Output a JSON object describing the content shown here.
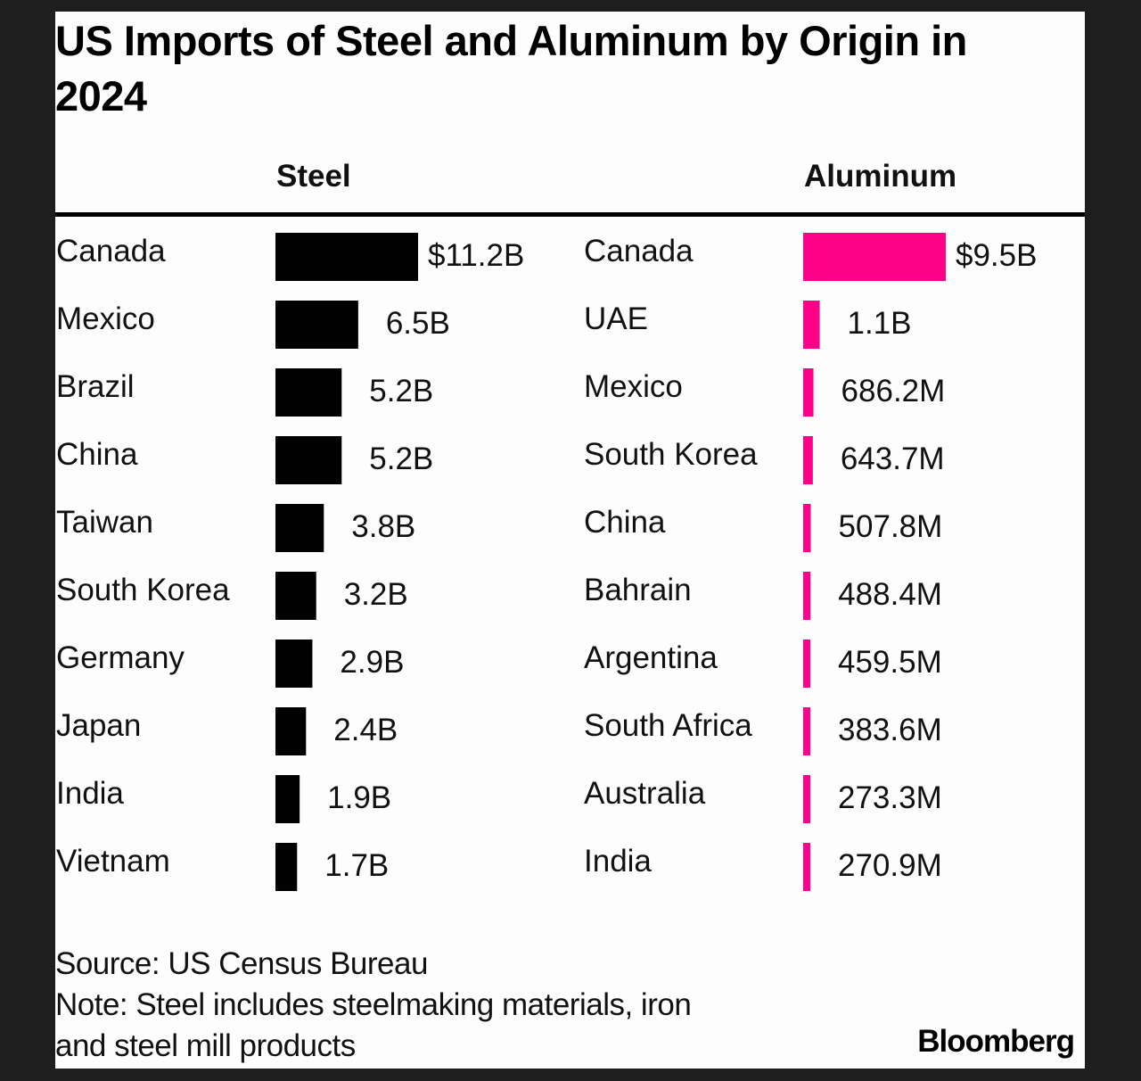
{
  "chart_data": [
    {
      "type": "bar",
      "orientation": "horizontal",
      "title": "US Imports of Steel and Aluminum by Origin in 2024",
      "panel": "Steel",
      "color": "#000000",
      "categories": [
        "Canada",
        "Mexico",
        "Brazil",
        "China",
        "Taiwan",
        "South Korea",
        "Germany",
        "Japan",
        "India",
        "Vietnam"
      ],
      "values": [
        11.2,
        6.5,
        5.2,
        5.2,
        3.8,
        3.2,
        2.9,
        2.4,
        1.9,
        1.7
      ],
      "unit": "USD billions",
      "labels": [
        "$11.2B",
        "6.5B",
        "5.2B",
        "5.2B",
        "3.8B",
        "3.2B",
        "2.9B",
        "2.4B",
        "1.9B",
        "1.7B"
      ],
      "xlabel": "",
      "ylabel": "",
      "grid": false
    },
    {
      "type": "bar",
      "orientation": "horizontal",
      "title": "US Imports of Steel and Aluminum by Origin in 2024",
      "panel": "Aluminum",
      "color": "#ff0088",
      "categories": [
        "Canada",
        "UAE",
        "Mexico",
        "South Korea",
        "China",
        "Bahrain",
        "Argentina",
        "South Africa",
        "Australia",
        "India"
      ],
      "values": [
        9.5,
        1.1,
        0.6862,
        0.6437,
        0.5078,
        0.4884,
        0.4595,
        0.3836,
        0.2733,
        0.2709
      ],
      "unit": "USD billions",
      "labels": [
        "$9.5B",
        "1.1B",
        "686.2M",
        "643.7M",
        "507.8M",
        "488.4M",
        "459.5M",
        "383.6M",
        "273.3M",
        "270.9M"
      ],
      "xlabel": "",
      "ylabel": "",
      "grid": false
    }
  ],
  "header": {
    "title": "US Imports of Steel and Aluminum by Origin in 2024",
    "steel_label": "Steel",
    "aluminum_label": "Aluminum"
  },
  "footer": {
    "source": "Source: US Census Bureau",
    "note_line1": "Note: Steel includes steelmaking materials, iron",
    "note_line2": "and steel mill products",
    "brand": "Bloomberg"
  }
}
